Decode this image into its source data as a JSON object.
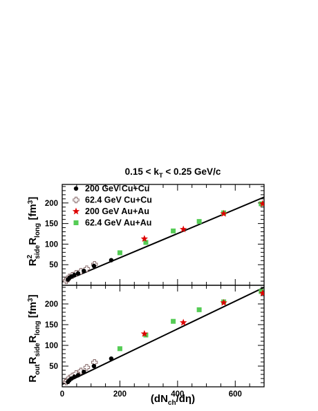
{
  "chart_data": [
    {
      "type": "scatter",
      "title": "0.15 < k_T < 0.25 GeV/c",
      "ylabel": "R²_side R_long [fm³]",
      "xlim": [
        0,
        700
      ],
      "ylim": [
        0,
        245
      ],
      "yticks": [
        50,
        100,
        150,
        200
      ],
      "legend_position": "top-left",
      "fit_line": {
        "x": [
          0,
          700
        ],
        "y": [
          8,
          214
        ]
      },
      "series": [
        {
          "name": "200 GeV Cu+Cu",
          "marker": "circle",
          "color": "#000000",
          "x": [
            20,
            25,
            32,
            42,
            55,
            75,
            110,
            170
          ],
          "y": [
            14,
            18,
            21,
            25,
            29,
            35,
            47,
            61
          ]
        },
        {
          "name": "62.4 GeV Cu+Cu",
          "marker": "open-cross",
          "color": "#7a5a5a",
          "x": [
            14,
            18,
            25,
            35,
            48,
            65,
            85,
            112
          ],
          "y": [
            11,
            15,
            20,
            24,
            29,
            34,
            40,
            51
          ]
        },
        {
          "name": "200 GeV Au+Au",
          "marker": "star",
          "color": "#dd0000",
          "x": [
            285,
            420,
            560,
            695
          ],
          "y": [
            113,
            136,
            174,
            198
          ]
        },
        {
          "name": "62.4 GeV Au+Au",
          "marker": "square",
          "color": "#55cc55",
          "x": [
            200,
            290,
            385,
            475,
            560,
            690
          ],
          "y": [
            79,
            104,
            132,
            155,
            176,
            198
          ]
        }
      ]
    },
    {
      "type": "scatter",
      "xlabel": "(dN_ch/dη)",
      "ylabel": "R_out R_side R_long [fm³]",
      "xlim": [
        0,
        700
      ],
      "ylim": [
        0,
        245
      ],
      "xticks": [
        0,
        200,
        400,
        600
      ],
      "yticks": [
        50,
        100,
        150,
        200
      ],
      "fit_line": {
        "x": [
          0,
          700
        ],
        "y": [
          6,
          240
        ]
      },
      "series": [
        {
          "name": "200 GeV Cu+Cu",
          "marker": "circle",
          "color": "#000000",
          "x": [
            20,
            25,
            32,
            42,
            55,
            75,
            110,
            170
          ],
          "y": [
            12,
            16,
            20,
            24,
            28,
            36,
            50,
            68
          ]
        },
        {
          "name": "62.4 GeV Cu+Cu",
          "marker": "open-cross",
          "color": "#7a5a5a",
          "x": [
            14,
            18,
            25,
            35,
            48,
            65,
            85,
            112
          ],
          "y": [
            12,
            15,
            21,
            26,
            32,
            38,
            47,
            59
          ]
        },
        {
          "name": "200 GeV Au+Au",
          "marker": "star",
          "color": "#dd0000",
          "x": [
            285,
            420,
            560,
            695
          ],
          "y": [
            128,
            155,
            203,
            226
          ]
        },
        {
          "name": "62.4 GeV Au+Au",
          "marker": "square",
          "color": "#55cc55",
          "x": [
            200,
            290,
            385,
            475,
            560,
            690
          ],
          "y": [
            92,
            125,
            158,
            186,
            205,
            230
          ]
        }
      ]
    }
  ]
}
